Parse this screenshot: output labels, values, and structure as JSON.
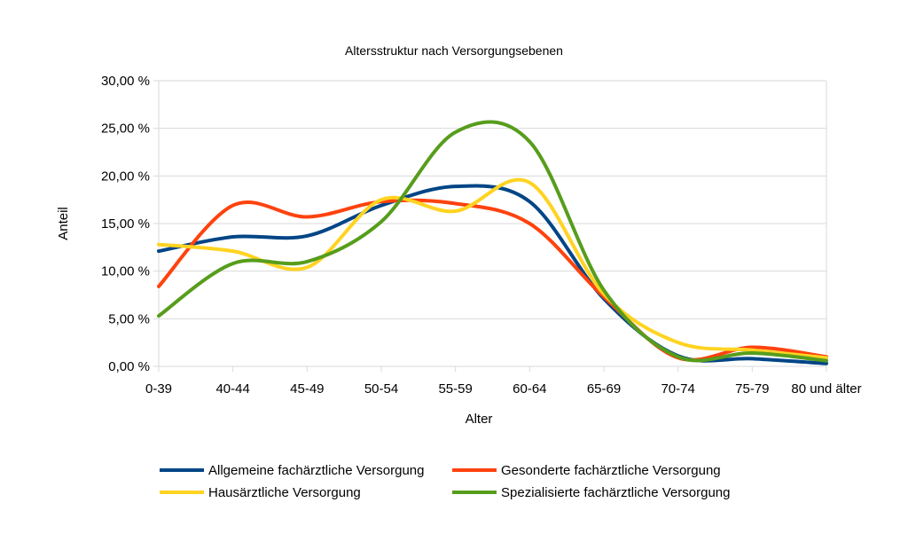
{
  "chart_data": {
    "type": "line",
    "smooth": true,
    "title": "Altersstruktur nach Versorgungsebenen",
    "xlabel": "Alter",
    "ylabel": "Anteil",
    "ylim": [
      0,
      30
    ],
    "yticks": [
      0,
      5,
      10,
      15,
      20,
      25,
      30
    ],
    "ytick_labels": [
      "0,00 %",
      "5,00 %",
      "10,00 %",
      "15,00 %",
      "20,00 %",
      "25,00 %",
      "30,00 %"
    ],
    "grid": true,
    "legend_position": "bottom",
    "categories": [
      "0-39",
      "40-44",
      "45-49",
      "50-54",
      "55-59",
      "60-64",
      "65-69",
      "70-74",
      "75-79",
      "80 und älter"
    ],
    "series": [
      {
        "name": "Allgemeine fachärztliche Versorgung",
        "color": "#004586",
        "values": [
          12.1,
          13.6,
          13.7,
          16.9,
          18.9,
          17.3,
          7.1,
          1.1,
          0.8,
          0.3
        ]
      },
      {
        "name": "Gesonderte fachärztliche Versorgung",
        "color": "#ff420e",
        "values": [
          8.4,
          16.9,
          15.7,
          17.3,
          17.1,
          15.0,
          7.3,
          0.9,
          2.0,
          1.0
        ]
      },
      {
        "name": "Hausärztliche Versorgung",
        "color": "#ffd320",
        "values": [
          12.8,
          12.1,
          10.4,
          17.5,
          16.3,
          19.3,
          7.6,
          2.5,
          1.7,
          0.9
        ]
      },
      {
        "name": "Spezialisierte fachärztliche Versorgung",
        "color": "#579d1c",
        "values": [
          5.3,
          10.8,
          11.0,
          15.2,
          24.6,
          23.6,
          8.0,
          1.0,
          1.4,
          0.6
        ]
      }
    ]
  }
}
